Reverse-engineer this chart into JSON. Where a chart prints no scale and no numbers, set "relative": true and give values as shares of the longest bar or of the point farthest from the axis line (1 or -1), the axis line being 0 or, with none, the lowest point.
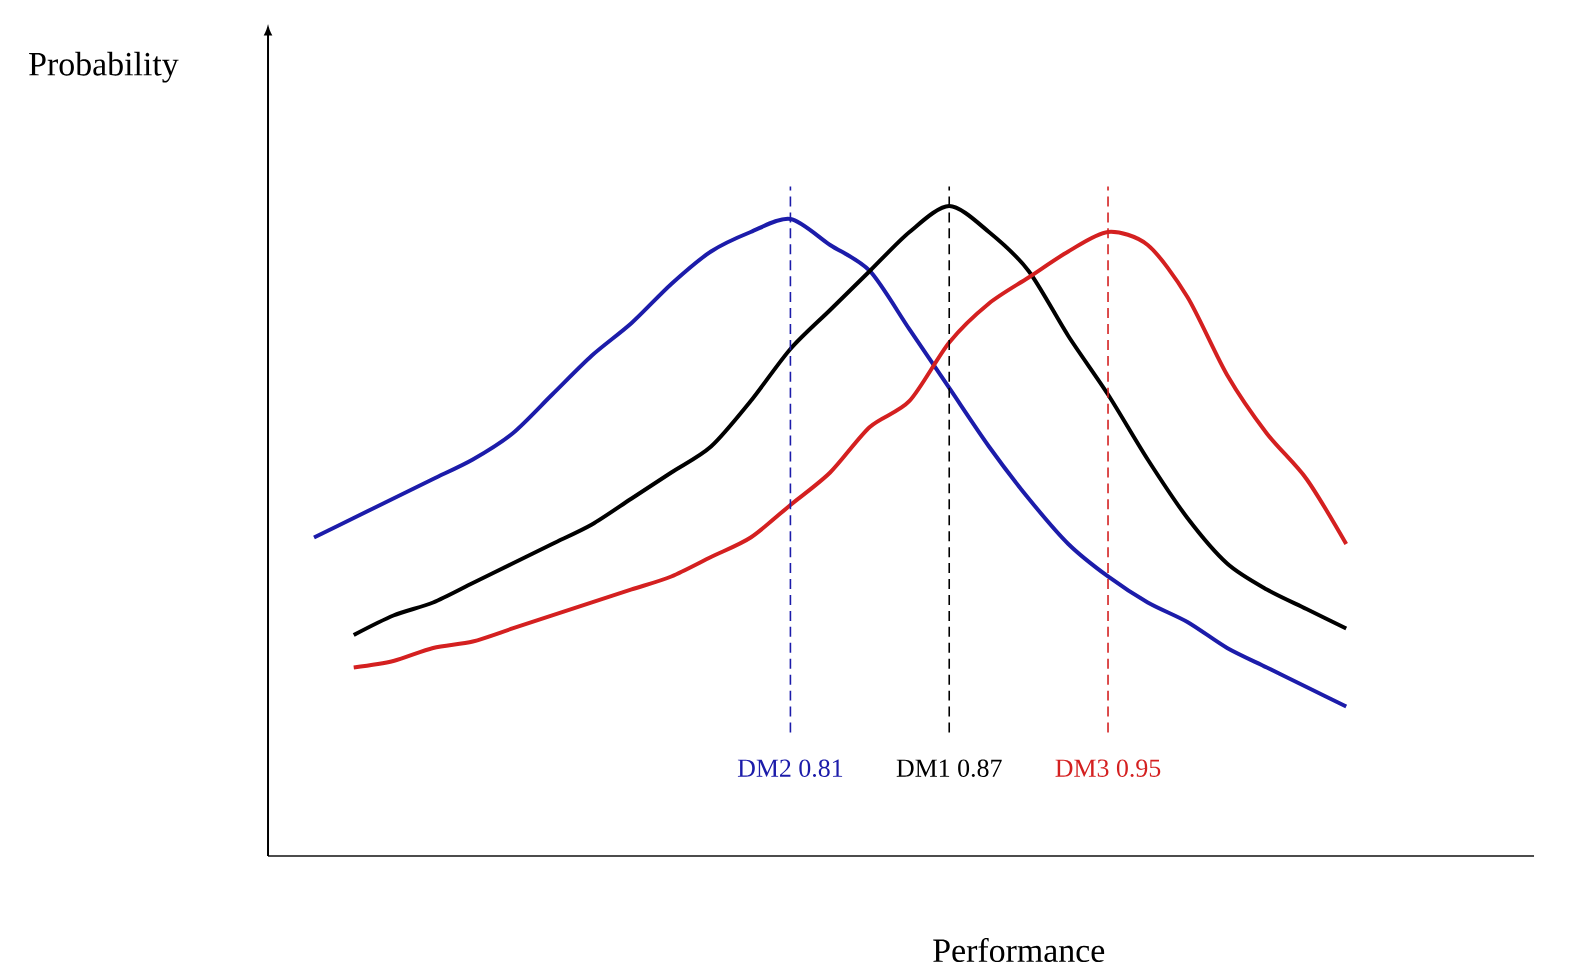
{
  "chart_data": {
    "type": "line",
    "relative": true,
    "xlabel": "Performance",
    "ylabel": "Probability",
    "categories": [
      null,
      null,
      null,
      null,
      null,
      null,
      null,
      null,
      null,
      null,
      null,
      null,
      null,
      null,
      null,
      null,
      null,
      null,
      null,
      null,
      null,
      null,
      null,
      null,
      null,
      null,
      null
    ],
    "series": [
      {
        "color": "#1c1caa",
        "values": [
          0.49,
          0.52,
          0.55,
          0.58,
          0.61,
          0.65,
          0.71,
          0.77,
          0.82,
          0.88,
          0.93,
          0.96,
          0.98,
          0.94,
          0.9,
          0.81,
          0.72,
          0.63,
          0.55,
          0.48,
          0.43,
          0.39,
          0.36,
          0.32,
          0.29,
          0.26,
          0.23
        ]
      },
      {
        "color": "#000000",
        "values": [
          null,
          0.34,
          0.37,
          0.39,
          0.42,
          0.45,
          0.48,
          0.51,
          0.55,
          0.59,
          0.63,
          0.7,
          0.78,
          0.84,
          0.9,
          0.96,
          1.0,
          0.96,
          0.9,
          0.8,
          0.71,
          0.61,
          0.52,
          0.45,
          0.41,
          0.38,
          0.35
        ]
      },
      {
        "color": "#d42020",
        "values": [
          null,
          0.29,
          0.3,
          0.32,
          0.33,
          0.35,
          0.37,
          0.39,
          0.41,
          0.43,
          0.46,
          0.49,
          0.54,
          0.59,
          0.66,
          0.7,
          0.79,
          0.85,
          0.89,
          0.93,
          0.96,
          0.94,
          0.86,
          0.74,
          0.65,
          0.58,
          0.48
        ]
      }
    ],
    "annotations": [
      "DM2 0.81",
      "DM1 0.87",
      "DM3 0.95"
    ]
  }
}
